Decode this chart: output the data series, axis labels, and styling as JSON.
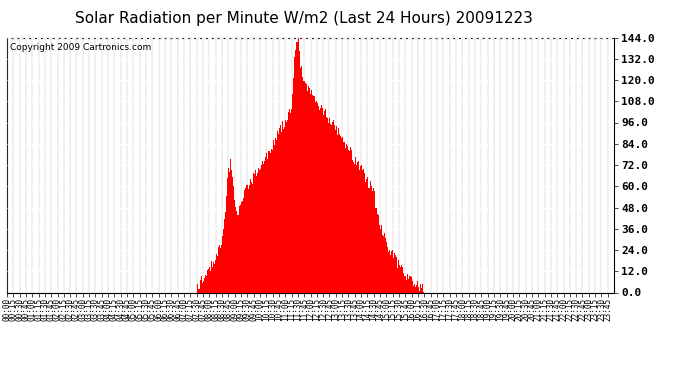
{
  "title": "Solar Radiation per Minute W/m2 (Last 24 Hours) 20091223",
  "copyright_text": "Copyright 2009 Cartronics.com",
  "ylim": [
    0.0,
    144.0
  ],
  "yticks": [
    0.0,
    12.0,
    24.0,
    36.0,
    48.0,
    60.0,
    72.0,
    84.0,
    96.0,
    108.0,
    120.0,
    132.0,
    144.0
  ],
  "bar_color": "#ff0000",
  "grid_h_color": "#ffffff",
  "grid_v_color": "#bbbbbb",
  "dashed_hline_color": "#ff0000",
  "background_color": "#ffffff",
  "title_fontsize": 11,
  "copyright_fontsize": 6.5,
  "xlabel_fontsize": 5.5,
  "ylabel_fontsize": 8,
  "profile_times": [
    0,
    449,
    450,
    455,
    460,
    470,
    475,
    480,
    490,
    500,
    505,
    510,
    515,
    520,
    525,
    530,
    535,
    540,
    545,
    550,
    555,
    560,
    565,
    570,
    580,
    590,
    600,
    615,
    625,
    635,
    645,
    655,
    665,
    675,
    678,
    681,
    684,
    687,
    690,
    693,
    696,
    700,
    705,
    710,
    715,
    720,
    730,
    740,
    750,
    760,
    770,
    780,
    790,
    800,
    810,
    820,
    830,
    840,
    850,
    860,
    870,
    875,
    880,
    885,
    890,
    895,
    900,
    910,
    920,
    930,
    940,
    950,
    955,
    960,
    965,
    970,
    975,
    980,
    985,
    990,
    1000,
    1440
  ],
  "profile_vals": [
    0,
    0,
    2,
    3,
    5,
    8,
    10,
    13,
    17,
    22,
    26,
    30,
    40,
    52,
    68,
    72,
    65,
    48,
    42,
    46,
    50,
    54,
    56,
    58,
    62,
    66,
    70,
    76,
    80,
    84,
    90,
    94,
    98,
    105,
    115,
    128,
    138,
    144,
    142,
    136,
    126,
    122,
    118,
    116,
    114,
    112,
    108,
    105,
    102,
    98,
    95,
    92,
    88,
    84,
    80,
    76,
    72,
    68,
    64,
    60,
    56,
    48,
    42,
    38,
    34,
    30,
    26,
    22,
    18,
    14,
    10,
    8,
    7,
    6,
    5,
    4,
    3,
    2,
    1,
    0,
    0,
    0
  ]
}
